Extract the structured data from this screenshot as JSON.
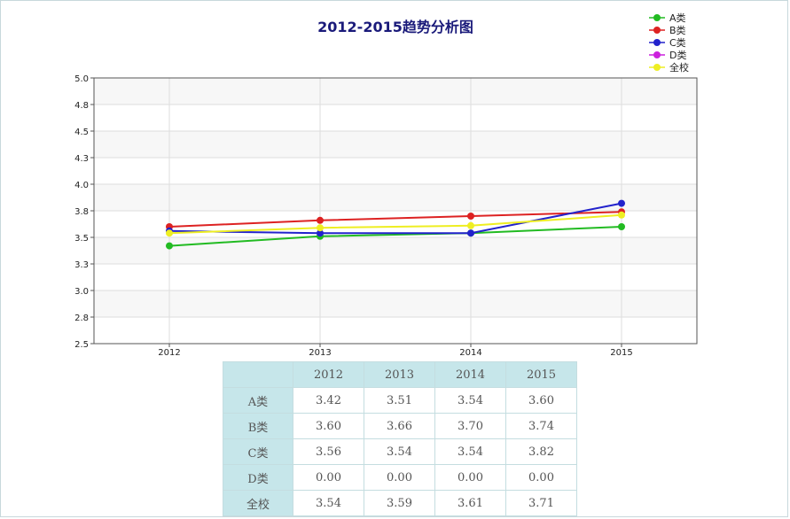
{
  "chart_data": {
    "type": "line",
    "title": "2012-2015趋势分析图",
    "x": [
      "2012",
      "2013",
      "2014",
      "2015"
    ],
    "ylim": [
      2.5,
      5.0
    ],
    "yticks": [
      "2.5",
      "2.8",
      "3.0",
      "3.3",
      "3.5",
      "3.8",
      "4.0",
      "4.3",
      "4.5",
      "4.8",
      "5.0"
    ],
    "grid": true,
    "legend_position": "top-right",
    "series": [
      {
        "name": "A类",
        "color": "#22bb22",
        "values": [
          3.42,
          3.51,
          3.54,
          3.6
        ]
      },
      {
        "name": "B类",
        "color": "#dd2222",
        "values": [
          3.6,
          3.66,
          3.7,
          3.74
        ]
      },
      {
        "name": "C类",
        "color": "#2222cc",
        "values": [
          3.56,
          3.54,
          3.54,
          3.82
        ]
      },
      {
        "name": "D类",
        "color": "#cc22dd",
        "values": [
          0.0,
          0.0,
          0.0,
          0.0
        ]
      },
      {
        "name": "全校",
        "color": "#eeee22",
        "values": [
          3.54,
          3.59,
          3.61,
          3.71
        ]
      }
    ]
  },
  "table": {
    "header": [
      "",
      "2012",
      "2013",
      "2014",
      "2015"
    ],
    "rows": [
      {
        "label": "A类",
        "cells": [
          "3.42",
          "3.51",
          "3.54",
          "3.60"
        ]
      },
      {
        "label": "B类",
        "cells": [
          "3.60",
          "3.66",
          "3.70",
          "3.74"
        ]
      },
      {
        "label": "C类",
        "cells": [
          "3.56",
          "3.54",
          "3.54",
          "3.82"
        ]
      },
      {
        "label": "D类",
        "cells": [
          "0.00",
          "0.00",
          "0.00",
          "0.00"
        ]
      },
      {
        "label": "全校",
        "cells": [
          "3.54",
          "3.59",
          "3.61",
          "3.71"
        ]
      }
    ]
  }
}
